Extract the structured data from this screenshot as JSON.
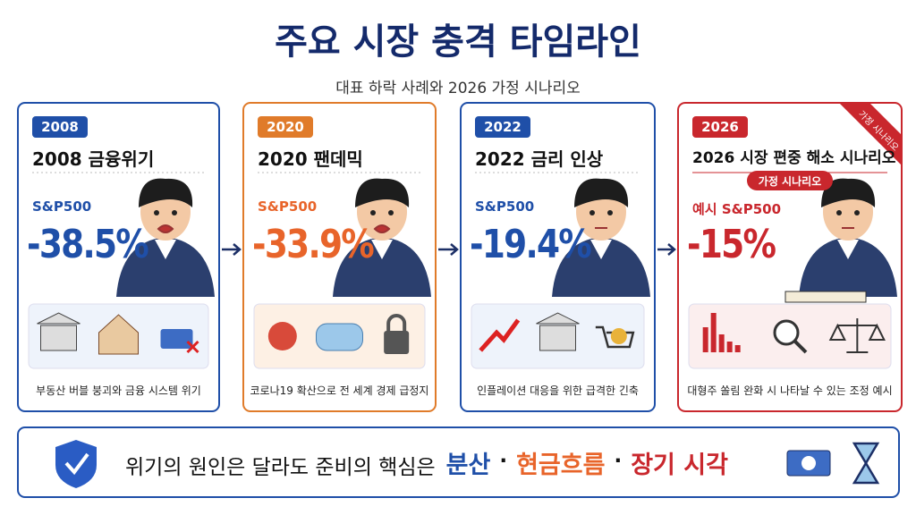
{
  "header": {
    "title": "주요 시장 충격 타임라인",
    "subtitle": "대표 하락 사례와 2026 가정 시나리오"
  },
  "cards": [
    {
      "badge": "2008",
      "heading": "2008 금융위기",
      "index_label": "S&P500",
      "value": "-38.5%",
      "description": "부동산 버블 붕괴와 금융 시스템 위기"
    },
    {
      "badge": "2020",
      "heading": "2020 팬데믹",
      "index_label": "S&P500",
      "value": "-33.9%",
      "description": "코로나19 확산으로 전 세계 경제 급정지"
    },
    {
      "badge": "2022",
      "heading": "2022 금리 인상",
      "index_label": "S&P500",
      "value": "-19.4%",
      "description": "인플레이션 대응을 위한 급격한 긴축"
    },
    {
      "badge": "2026",
      "ribbon": "가정 시나리오",
      "heading": "2026 시장 편중 해소 시나리오",
      "tag": "가정 시나리오",
      "index_label": "예시 S&P500",
      "value": "-15%",
      "description": "대형주 쏠림 완화 시 나타날 수 있는 조정 예시"
    }
  ],
  "footer": {
    "lead": "위기의 원인은 달라도 준비의 핵심은",
    "separator": "·",
    "key_points": [
      "분산",
      "현금흐름",
      "장기 시각"
    ]
  }
}
